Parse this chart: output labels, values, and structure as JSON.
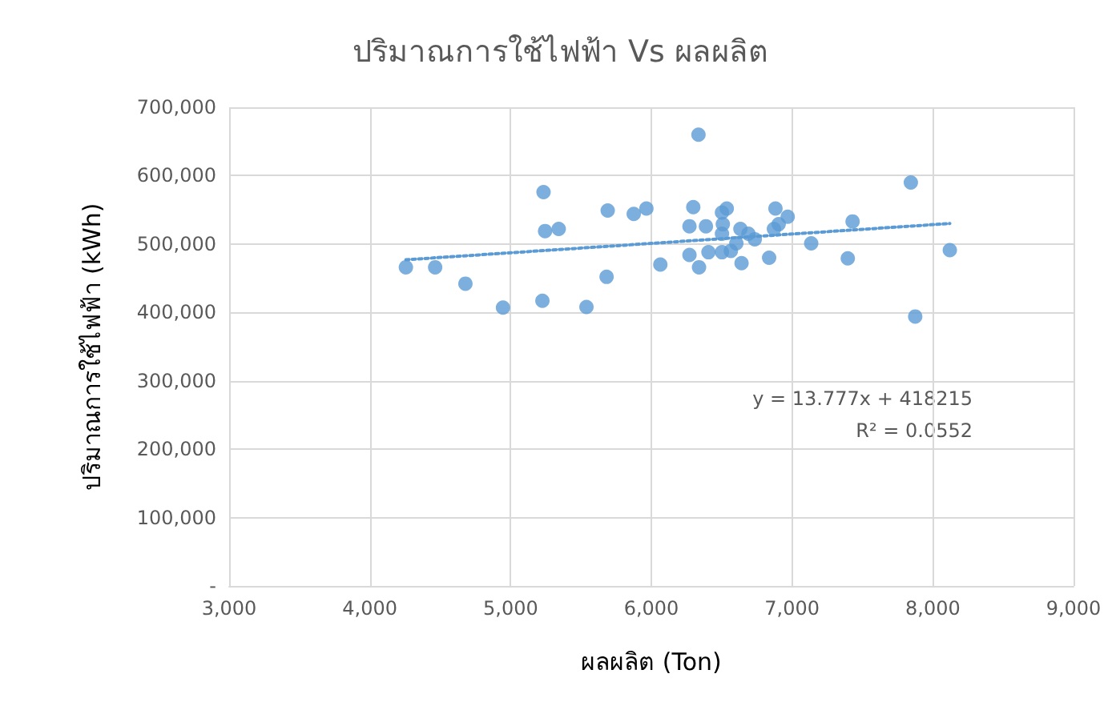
{
  "chart_data": {
    "type": "scatter",
    "title": "ปริมาณการใช้ไฟฟ้า Vs ผลผลิต",
    "xlabel": "ผลผลิต (Ton)",
    "ylabel": "ปริมาณการใช้ไฟฟ้า (kWh)",
    "annotations": [
      "y = 13.777x + 418215",
      "R² = 0.0552"
    ],
    "series": [
      {
        "color": "#5b9bd5",
        "marker": "circle",
        "x": [
          4256,
          4464,
          4679,
          4946,
          5226,
          5234,
          5245,
          5342,
          5539,
          5682,
          5690,
          5875,
          5965,
          6064,
          6271,
          6298,
          6335,
          6271,
          6339,
          6388,
          6406,
          6502,
          6536,
          6508,
          6502,
          6502,
          6565,
          6633,
          6690,
          6735,
          6641,
          6604,
          6837,
          6882,
          6871,
          6969,
          6905,
          7136,
          7430,
          7396,
          7844,
          7875,
          8121
        ],
        "values": [
          466000,
          466000,
          442000,
          407000,
          417000,
          576000,
          519000,
          522000,
          408000,
          452000,
          549000,
          544000,
          552000,
          470000,
          526000,
          554000,
          660000,
          484000,
          466000,
          526000,
          488000,
          546000,
          552000,
          529000,
          515000,
          488000,
          490000,
          522000,
          515000,
          507000,
          472000,
          501000,
          480000,
          552000,
          522000,
          540000,
          529000,
          501000,
          533000,
          479000,
          590000,
          394000,
          491000
        ]
      },
      {
        "type": "line",
        "color": "#5b9bd5",
        "marker": "none",
        "line_style": "dotted",
        "x": [
          4256,
          8121
        ],
        "values": [
          477000,
          530000
        ]
      }
    ],
    "grid": true,
    "xlim": [
      3000,
      9000
    ],
    "xticks": [
      {
        "value": 3000,
        "label": "3,000"
      },
      {
        "value": 4000,
        "label": "4,000"
      },
      {
        "value": 5000,
        "label": "5,000"
      },
      {
        "value": 6000,
        "label": "6,000"
      },
      {
        "value": 7000,
        "label": "7,000"
      },
      {
        "value": 8000,
        "label": "8,000"
      },
      {
        "value": 9000,
        "label": "9,000"
      }
    ],
    "ylim": [
      0,
      700000
    ],
    "yticks": [
      {
        "value": 0,
        "label": "-"
      },
      {
        "value": 100000,
        "label": "100,000"
      },
      {
        "value": 200000,
        "label": "200,000"
      },
      {
        "value": 300000,
        "label": "300,000"
      },
      {
        "value": 400000,
        "label": "400,000"
      },
      {
        "value": 500000,
        "label": "500,000"
      },
      {
        "value": 600000,
        "label": "600,000"
      },
      {
        "value": 700000,
        "label": "700,000"
      }
    ]
  }
}
